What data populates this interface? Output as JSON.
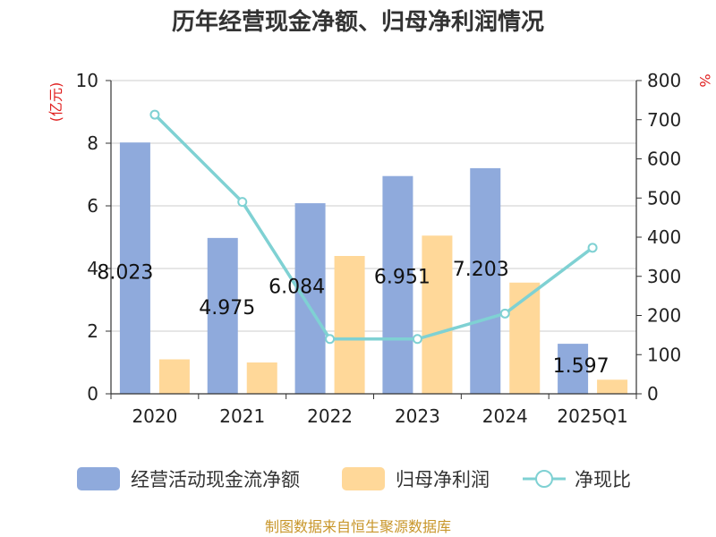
{
  "chart_data": {
    "type": "bar",
    "title": "历年经营现金净额、归母净利润情况",
    "categories": [
      "2020",
      "2021",
      "2022",
      "2023",
      "2024",
      "2025Q1"
    ],
    "series": [
      {
        "name": "经营活动现金流净额",
        "type": "bar",
        "axis": "left",
        "color": "#8faadc",
        "values": [
          8.023,
          4.975,
          6.084,
          6.951,
          7.203,
          1.597
        ]
      },
      {
        "name": "归母净利润",
        "type": "bar",
        "axis": "left",
        "color": "#ffd899",
        "values": [
          1.1,
          1.0,
          4.4,
          5.05,
          3.55,
          0.45
        ]
      },
      {
        "name": "净现比",
        "type": "line",
        "axis": "right",
        "color": "#7fd1d3",
        "values": [
          713,
          490,
          140,
          140,
          205,
          373
        ]
      }
    ],
    "data_labels": [
      "8.023",
      "4.975",
      "6.084",
      "6.951",
      "7.203",
      "1.597"
    ],
    "y_left": {
      "label": "(亿元)",
      "ylim": [
        0,
        10
      ],
      "ticks": [
        "0",
        "2",
        "4",
        "6",
        "8",
        "10"
      ]
    },
    "y_right": {
      "label": "%",
      "ylim": [
        0,
        800
      ],
      "ticks": [
        "0",
        "100",
        "200",
        "300",
        "400",
        "500",
        "600",
        "700",
        "800"
      ]
    },
    "grid": true,
    "legend_position": "bottom",
    "source": "制图数据来自恒生聚源数据库",
    "accent_color": "#e02020",
    "source_color": "#c8962a"
  }
}
